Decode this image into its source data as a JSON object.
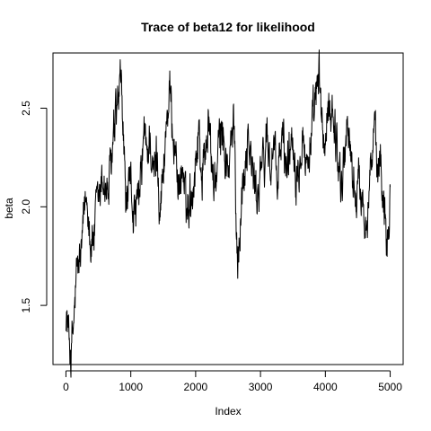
{
  "chart_data": {
    "type": "line",
    "title": "Trace of beta12 for likelihood",
    "xlabel": "Index",
    "ylabel": "beta",
    "xlim": [
      -200,
      5200
    ],
    "ylim": [
      1.2,
      2.78
    ],
    "x_ticks": [
      0,
      1000,
      2000,
      3000,
      4000,
      5000
    ],
    "x_tick_labels": [
      "0",
      "1000",
      "2000",
      "3000",
      "4000",
      "5000"
    ],
    "y_ticks": [
      1.5,
      2.0,
      2.5
    ],
    "y_tick_labels": [
      "1.5",
      "2.0",
      "2.5"
    ],
    "grid": false,
    "legend": "none",
    "series": [
      {
        "color": "#000000",
        "n_points": 5000,
        "x_start": 1,
        "x_end": 5000,
        "anchor_points": [
          [
            1,
            1.48
          ],
          [
            30,
            1.38
          ],
          [
            80,
            1.25
          ],
          [
            120,
            1.4
          ],
          [
            160,
            1.62
          ],
          [
            200,
            1.7
          ],
          [
            250,
            1.78
          ],
          [
            300,
            2.02
          ],
          [
            340,
            2.05
          ],
          [
            380,
            1.82
          ],
          [
            420,
            1.85
          ],
          [
            480,
            1.95
          ],
          [
            520,
            2.05
          ],
          [
            580,
            2.15
          ],
          [
            640,
            2.05
          ],
          [
            700,
            2.2
          ],
          [
            750,
            2.35
          ],
          [
            800,
            2.5
          ],
          [
            850,
            2.58
          ],
          [
            880,
            2.4
          ],
          [
            920,
            2.05
          ],
          [
            960,
            2.0
          ],
          [
            1000,
            2.1
          ],
          [
            1050,
            1.98
          ],
          [
            1100,
            1.95
          ],
          [
            1150,
            2.1
          ],
          [
            1200,
            2.35
          ],
          [
            1250,
            2.25
          ],
          [
            1300,
            2.38
          ],
          [
            1350,
            2.12
          ],
          [
            1400,
            2.28
          ],
          [
            1450,
            2.05
          ],
          [
            1500,
            2.15
          ],
          [
            1550,
            2.45
          ],
          [
            1600,
            2.55
          ],
          [
            1650,
            2.4
          ],
          [
            1700,
            2.25
          ],
          [
            1750,
            2.1
          ],
          [
            1800,
            2.2
          ],
          [
            1850,
            1.95
          ],
          [
            1900,
            2.05
          ],
          [
            1950,
            2.1
          ],
          [
            2000,
            2.25
          ],
          [
            2050,
            2.4
          ],
          [
            2100,
            2.15
          ],
          [
            2150,
            2.3
          ],
          [
            2200,
            2.45
          ],
          [
            2250,
            2.2
          ],
          [
            2300,
            2.1
          ],
          [
            2350,
            2.25
          ],
          [
            2400,
            2.4
          ],
          [
            2450,
            2.3
          ],
          [
            2500,
            2.15
          ],
          [
            2550,
            2.3
          ],
          [
            2600,
            2.4
          ],
          [
            2620,
            1.95
          ],
          [
            2650,
            1.78
          ],
          [
            2700,
            2.0
          ],
          [
            2750,
            2.2
          ],
          [
            2800,
            2.4
          ],
          [
            2850,
            2.25
          ],
          [
            2900,
            2.1
          ],
          [
            2950,
            2.05
          ],
          [
            3000,
            2.25
          ],
          [
            3050,
            2.15
          ],
          [
            3100,
            2.4
          ],
          [
            3150,
            2.2
          ],
          [
            3200,
            2.3
          ],
          [
            3250,
            2.1
          ],
          [
            3300,
            2.25
          ],
          [
            3350,
            2.35
          ],
          [
            3400,
            2.2
          ],
          [
            3450,
            2.3
          ],
          [
            3500,
            2.4
          ],
          [
            3550,
            2.2
          ],
          [
            3600,
            2.3
          ],
          [
            3650,
            2.45
          ],
          [
            3700,
            2.2
          ],
          [
            3750,
            2.3
          ],
          [
            3800,
            2.35
          ],
          [
            3850,
            2.5
          ],
          [
            3900,
            2.65
          ],
          [
            3950,
            2.4
          ],
          [
            4000,
            2.3
          ],
          [
            4050,
            2.45
          ],
          [
            4100,
            2.55
          ],
          [
            4150,
            2.4
          ],
          [
            4200,
            2.25
          ],
          [
            4250,
            2.1
          ],
          [
            4300,
            2.3
          ],
          [
            4350,
            2.45
          ],
          [
            4400,
            2.2
          ],
          [
            4450,
            2.1
          ],
          [
            4500,
            2.05
          ],
          [
            4550,
            2.15
          ],
          [
            4600,
            1.95
          ],
          [
            4650,
            2.05
          ],
          [
            4700,
            2.2
          ],
          [
            4750,
            2.35
          ],
          [
            4800,
            2.15
          ],
          [
            4850,
            2.25
          ],
          [
            4900,
            2.05
          ],
          [
            4950,
            1.85
          ],
          [
            5000,
            2.1
          ]
        ]
      }
    ]
  }
}
